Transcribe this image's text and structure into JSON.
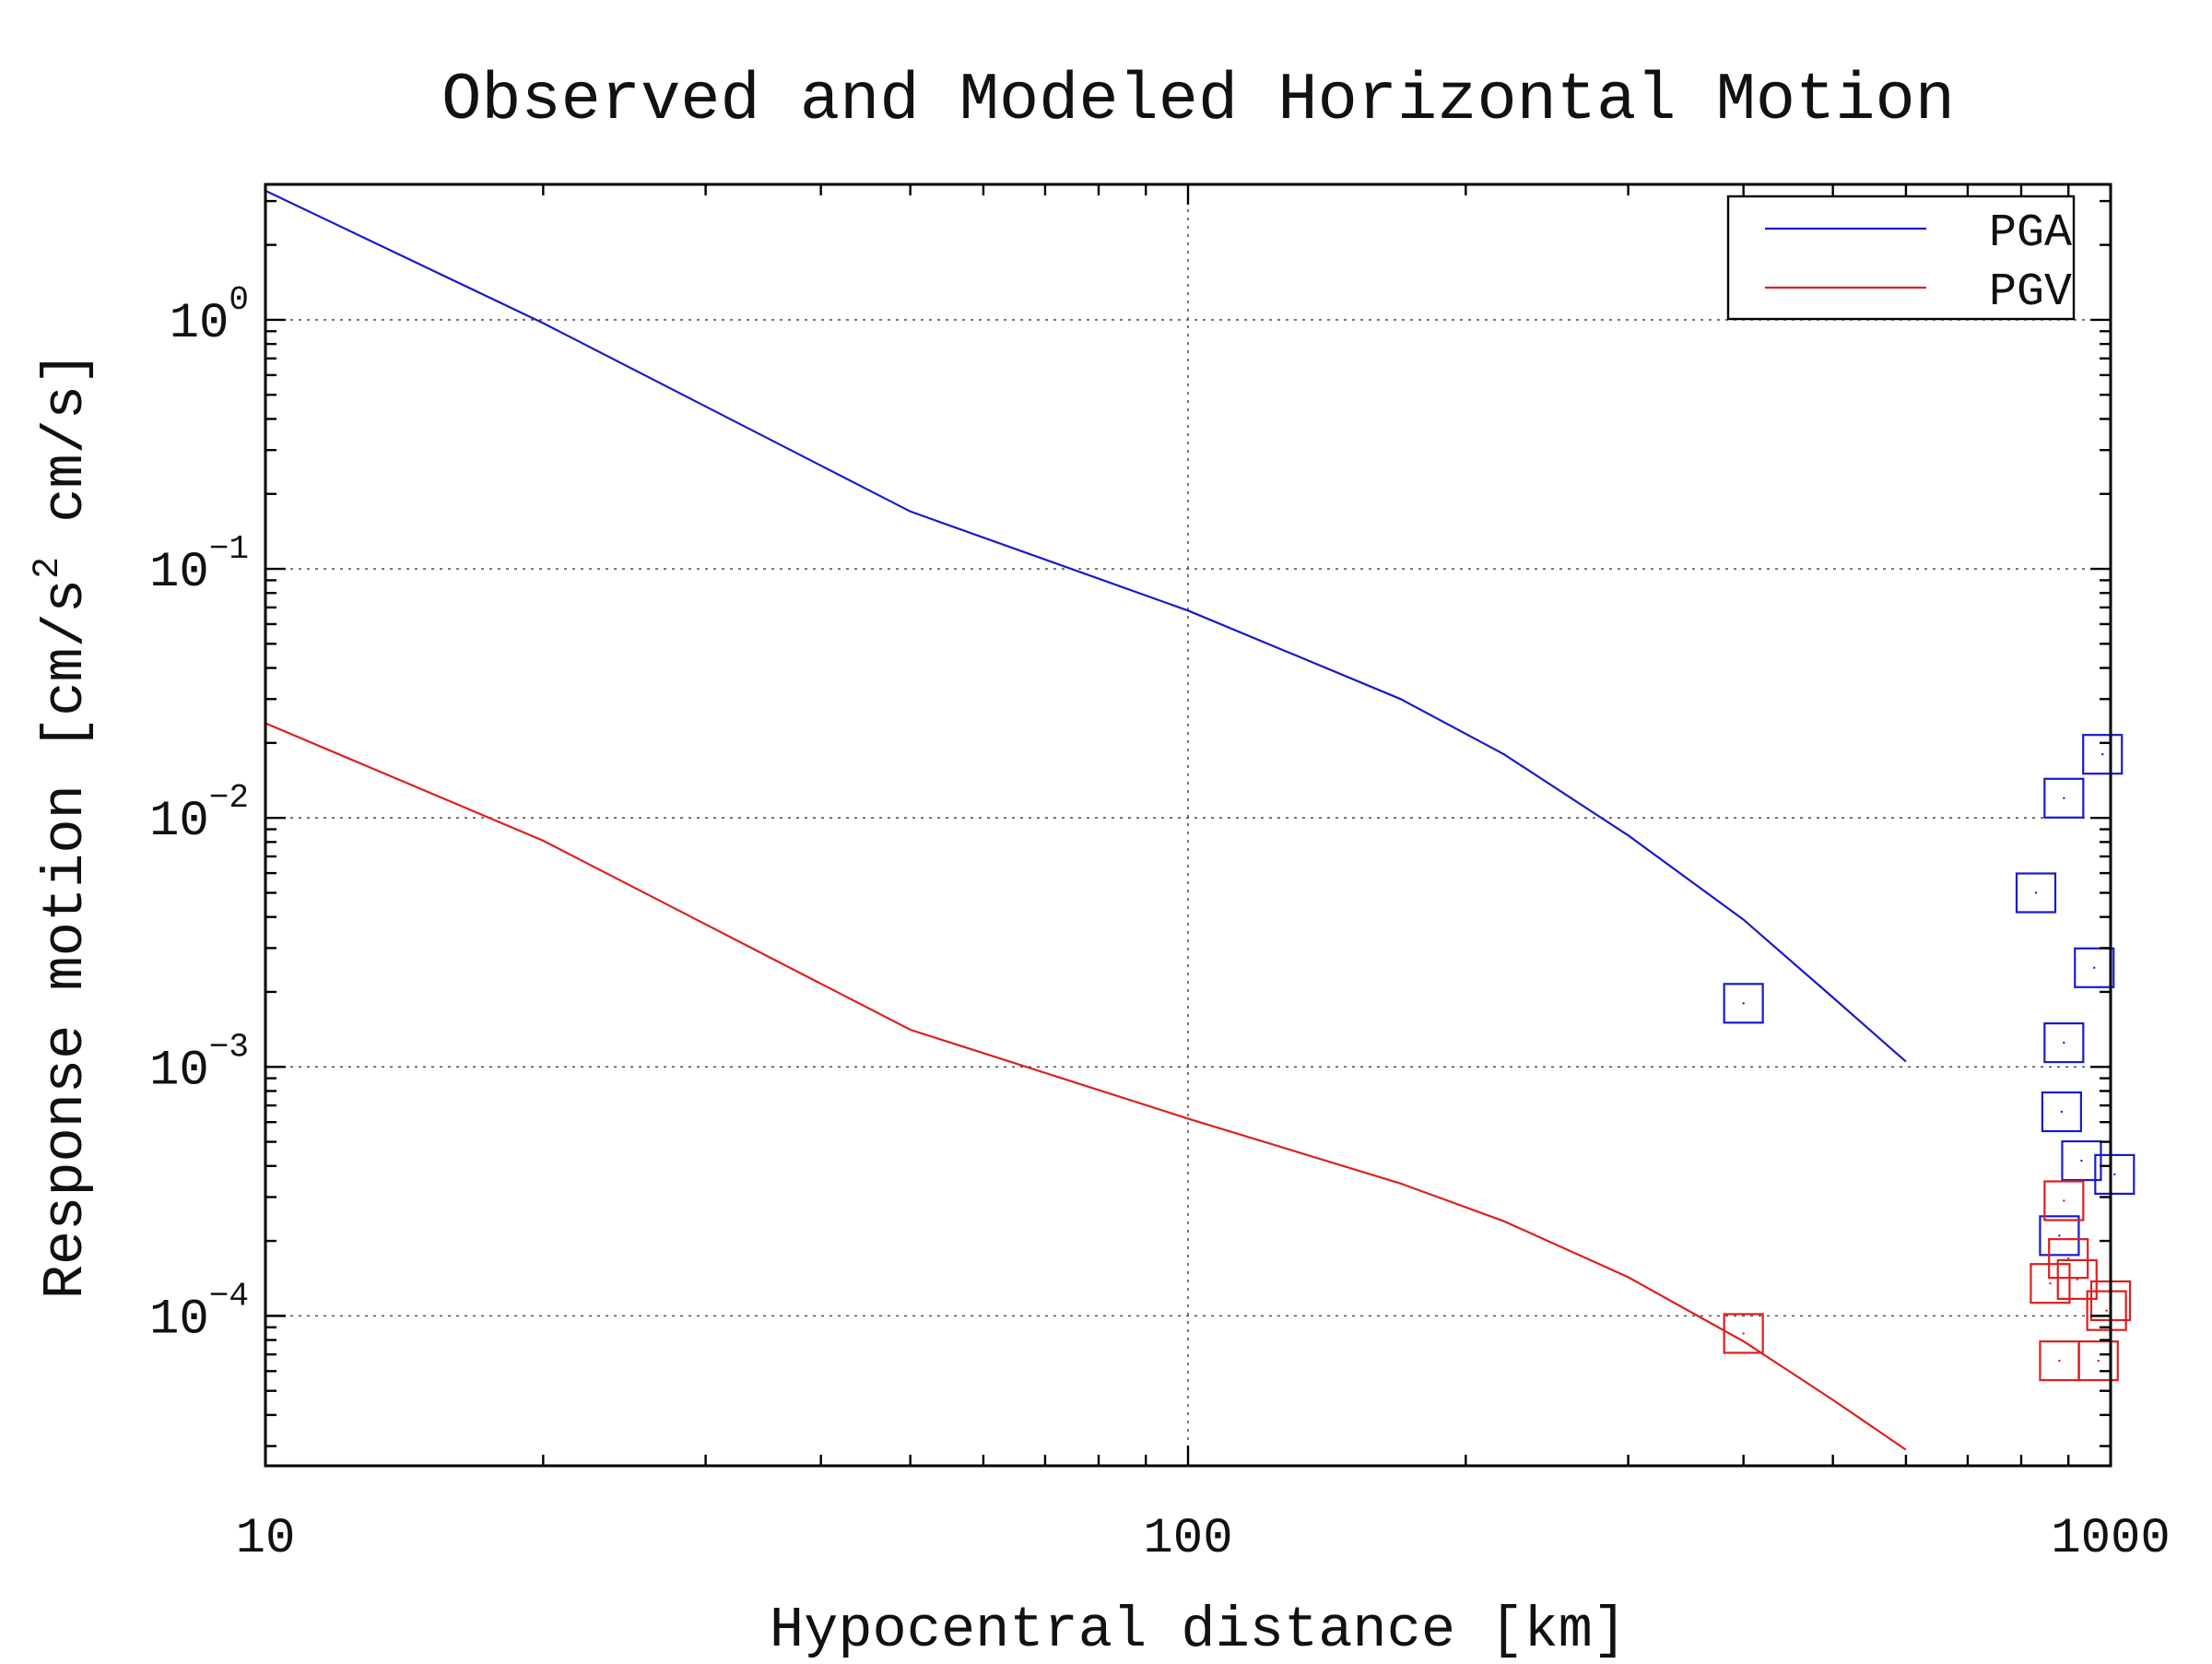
{
  "chart_data": {
    "type": "line",
    "title": "Observed and Modeled Horizontal Motion",
    "xlabel": "Hypocentral distance [km]",
    "ylabel_parts": {
      "before": "Response motion  [cm/s",
      "sup": "2",
      "after": "  cm/s]"
    },
    "x_scale": "log",
    "y_scale": "log",
    "xlim": [
      10,
      1000
    ],
    "ylim": [
      2.5e-05,
      3.5
    ],
    "x_ticks": [
      {
        "value": 10,
        "label": "10"
      },
      {
        "value": 100,
        "label": "100"
      },
      {
        "value": 1000,
        "label": "1000"
      }
    ],
    "y_ticks": [
      {
        "value": 1,
        "base": "10",
        "exp": "0"
      },
      {
        "value": 0.1,
        "base": "10",
        "exp": "−1"
      },
      {
        "value": 0.01,
        "base": "10",
        "exp": "−2"
      },
      {
        "value": 0.001,
        "base": "10",
        "exp": "−3"
      },
      {
        "value": 0.0001,
        "base": "10",
        "exp": "−4"
      }
    ],
    "grid": true,
    "legend_position": "top-right",
    "colors": {
      "PGA": "#1a1acc",
      "PGV": "#dd1f1f"
    },
    "series": [
      {
        "name": "PGA",
        "color": "#1a1acc",
        "line": {
          "x": [
            10,
            20,
            50,
            100,
            170,
            220,
            300,
            400,
            500,
            600
          ],
          "y": [
            3.3,
            0.97,
            0.17,
            0.068,
            0.03,
            0.018,
            0.0085,
            0.0039,
            0.0019,
            0.00105
          ]
        },
        "observed": {
          "x": [
            400,
            830,
            890,
            980,
            960,
            890,
            885,
            930,
            1010,
            880
          ],
          "y": [
            0.0018,
            0.005,
            0.012,
            0.018,
            0.0025,
            0.00125,
            0.00066,
            0.00042,
            0.00037,
            0.00021
          ]
        }
      },
      {
        "name": "PGV",
        "color": "#dd1f1f",
        "line": {
          "x": [
            10,
            20,
            50,
            100,
            170,
            220,
            300,
            400,
            500,
            600
          ],
          "y": [
            0.024,
            0.0081,
            0.00141,
            0.00062,
            0.00034,
            0.00024,
            0.000143,
            7.9e-05,
            4.6e-05,
            2.9e-05
          ]
        },
        "observed": {
          "x": [
            400,
            890,
            860,
            920,
            900,
            990,
            1000,
            880,
            970
          ],
          "y": [
            8.5e-05,
            0.00029,
            0.000135,
            0.00014,
            0.00017,
            0.000105,
            0.000115,
            6.6e-05,
            6.6e-05
          ]
        }
      }
    ]
  }
}
